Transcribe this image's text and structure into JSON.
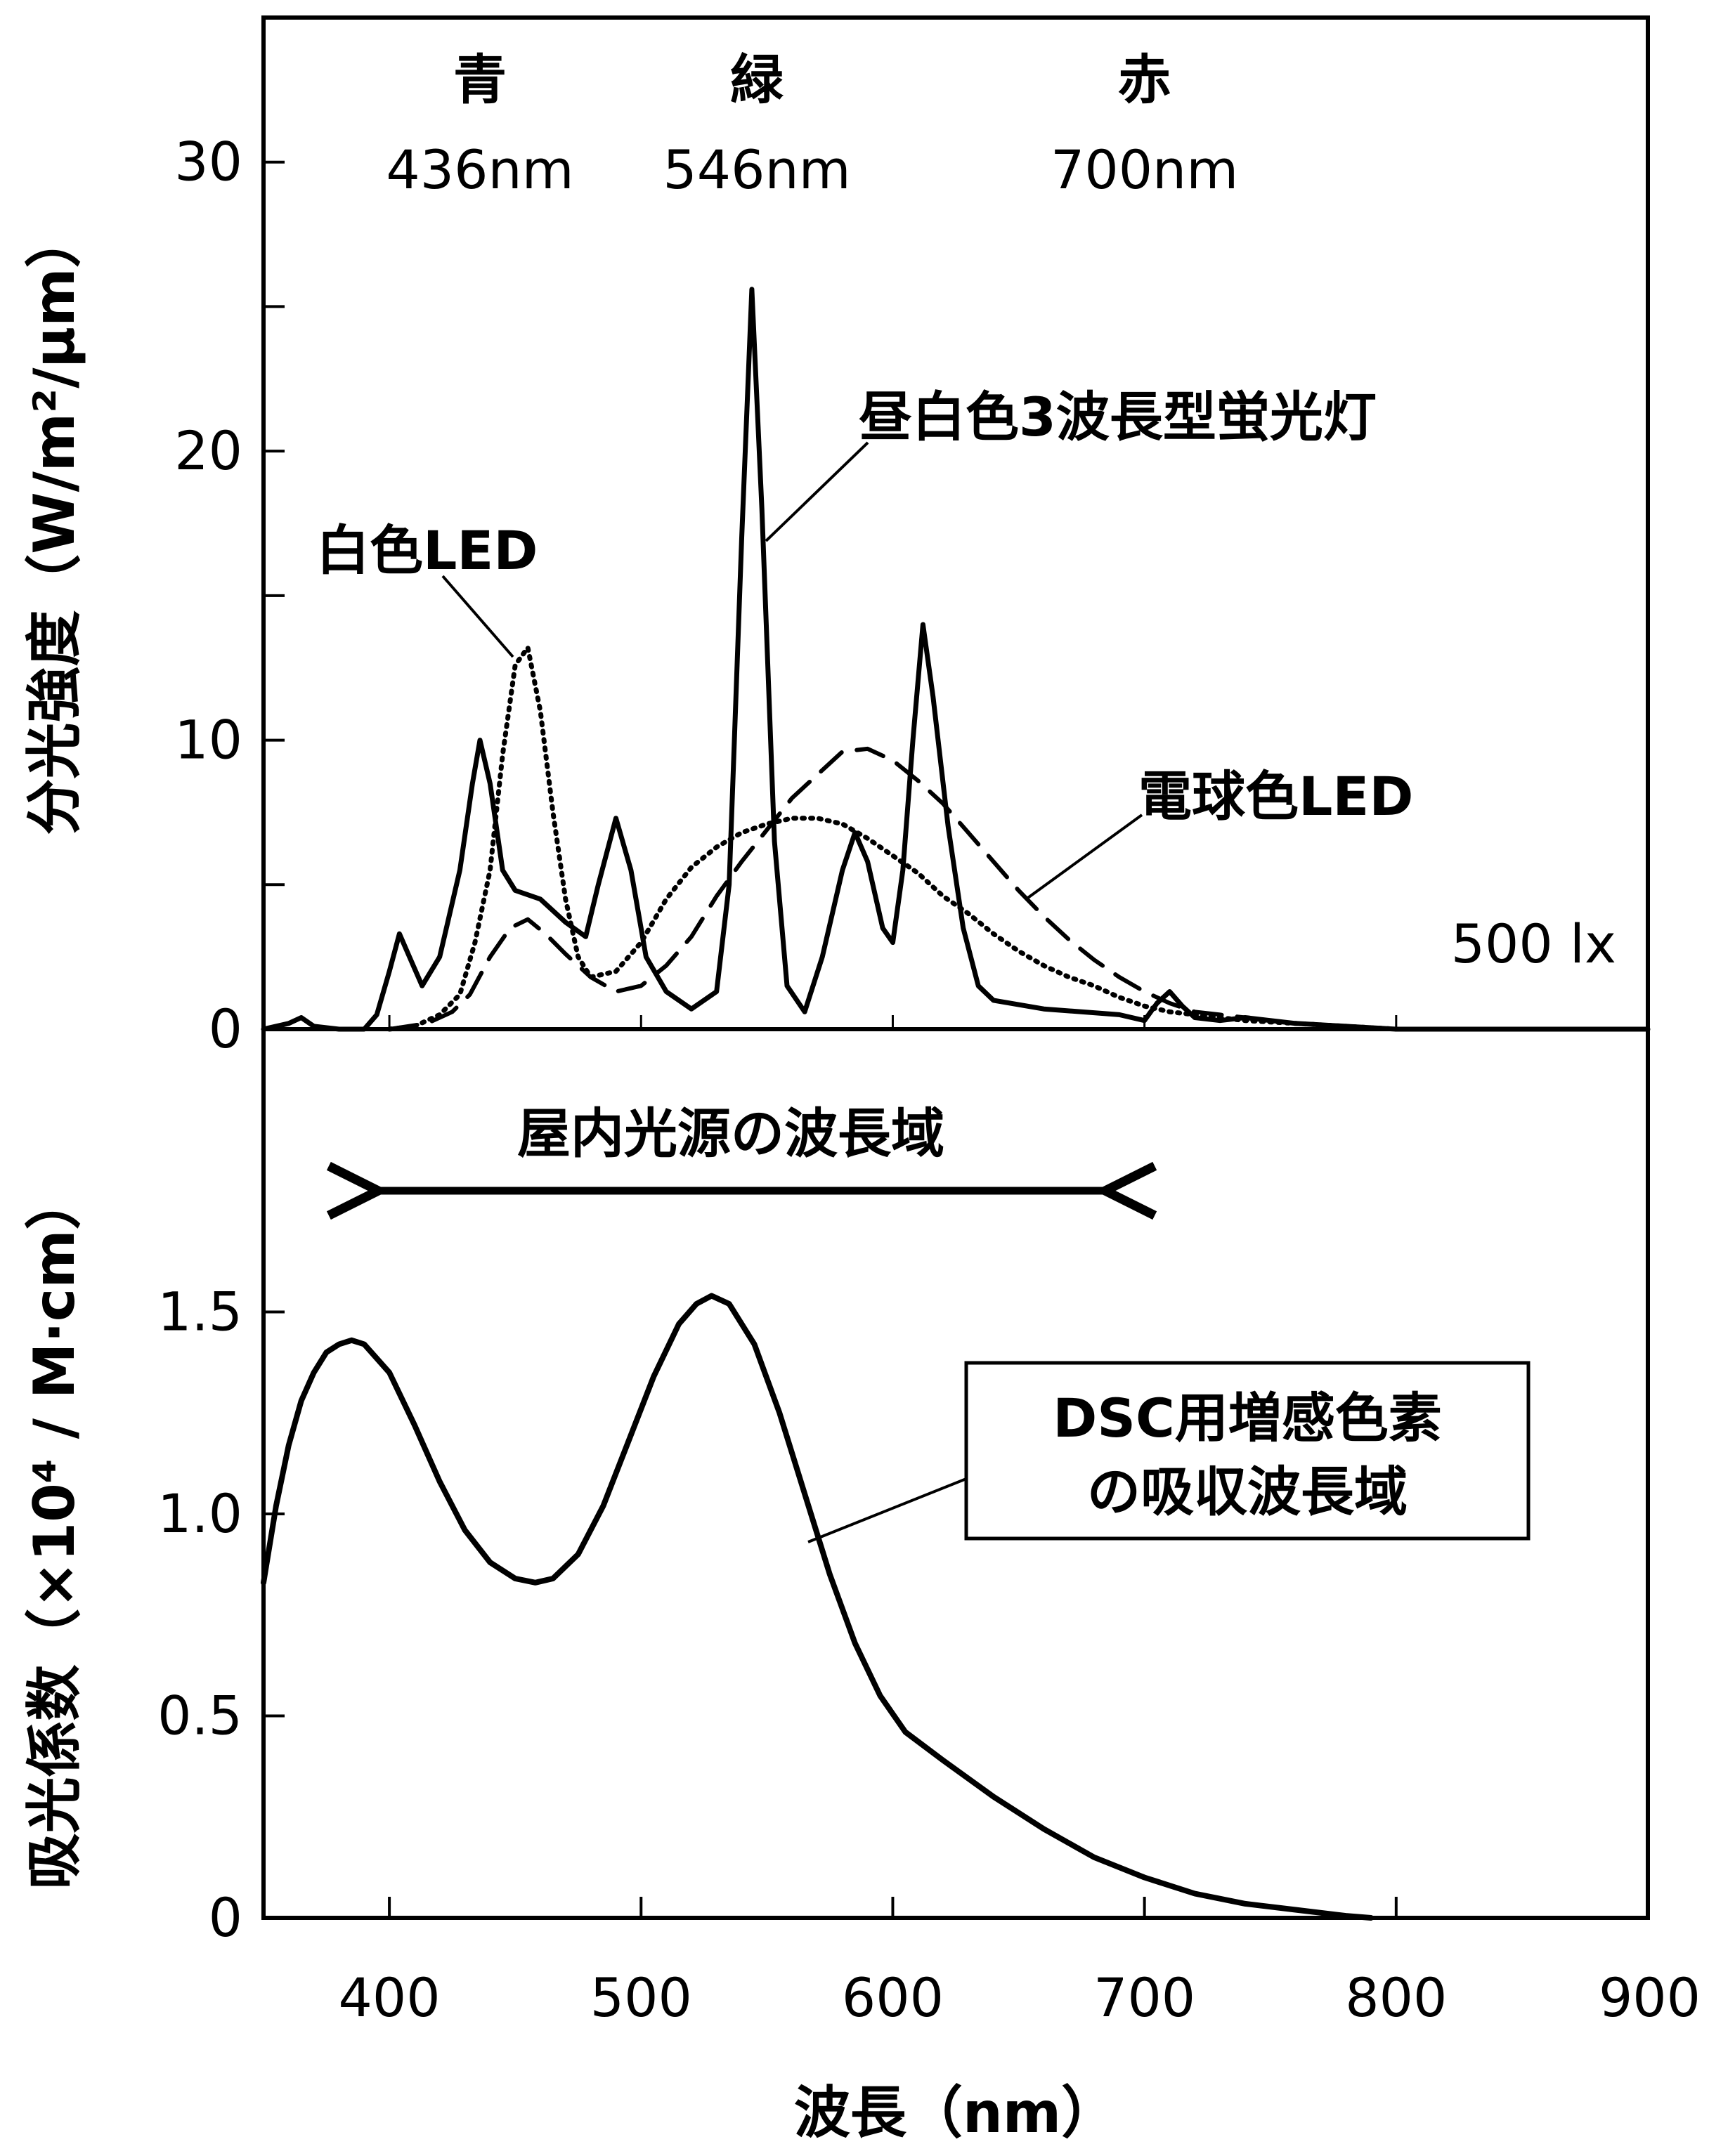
{
  "chart_data": [
    {
      "type": "line",
      "ylabel": "分光強度（W/m²/μm）",
      "ylim": [
        0,
        35
      ],
      "xlim": [
        350,
        900
      ],
      "yticks": [
        0,
        10,
        20,
        30
      ],
      "yticks_minor": [
        5,
        15,
        25
      ],
      "grid": false,
      "color_labels": [
        {
          "name": "青",
          "wavelength": "436nm",
          "x": 436
        },
        {
          "name": "緑",
          "wavelength": "546nm",
          "x": 546
        },
        {
          "name": "赤",
          "wavelength": "700nm",
          "x": 700
        }
      ],
      "note": "500 lx",
      "series": [
        {
          "name": "昼白色3波長型蛍光灯",
          "style": "solid",
          "points": [
            [
              350,
              0
            ],
            [
              360,
              0.2
            ],
            [
              365,
              0.4
            ],
            [
              370,
              0.1
            ],
            [
              380,
              0
            ],
            [
              390,
              0
            ],
            [
              395,
              0.5
            ],
            [
              400,
              2.0
            ],
            [
              404,
              3.3
            ],
            [
              408,
              2.5
            ],
            [
              413,
              1.5
            ],
            [
              420,
              2.5
            ],
            [
              428,
              5.5
            ],
            [
              433,
              8.5
            ],
            [
              436,
              10.0
            ],
            [
              440,
              8.5
            ],
            [
              445,
              5.5
            ],
            [
              450,
              4.8
            ],
            [
              460,
              4.5
            ],
            [
              470,
              3.7
            ],
            [
              478,
              3.2
            ],
            [
              483,
              5.0
            ],
            [
              490,
              7.3
            ],
            [
              496,
              5.5
            ],
            [
              502,
              2.5
            ],
            [
              510,
              1.3
            ],
            [
              520,
              0.7
            ],
            [
              530,
              1.3
            ],
            [
              535,
              5.0
            ],
            [
              540,
              17.0
            ],
            [
              544,
              25.6
            ],
            [
              548,
              18.0
            ],
            [
              553,
              6.5
            ],
            [
              558,
              1.5
            ],
            [
              565,
              0.6
            ],
            [
              572,
              2.5
            ],
            [
              580,
              5.5
            ],
            [
              585,
              6.8
            ],
            [
              590,
              5.8
            ],
            [
              596,
              3.5
            ],
            [
              600,
              3.0
            ],
            [
              604,
              5.5
            ],
            [
              608,
              10.0
            ],
            [
              612,
              14.0
            ],
            [
              616,
              11.5
            ],
            [
              622,
              7.0
            ],
            [
              628,
              3.5
            ],
            [
              634,
              1.5
            ],
            [
              640,
              1.0
            ],
            [
              660,
              0.7
            ],
            [
              690,
              0.5
            ],
            [
              700,
              0.3
            ],
            [
              705,
              0.9
            ],
            [
              710,
              1.3
            ],
            [
              715,
              0.8
            ],
            [
              720,
              0.4
            ],
            [
              730,
              0.3
            ],
            [
              740,
              0.4
            ],
            [
              750,
              0.3
            ],
            [
              760,
              0.2
            ],
            [
              780,
              0.1
            ],
            [
              800,
              0
            ],
            [
              900,
              0
            ]
          ]
        },
        {
          "name": "白色LED",
          "style": "dotted",
          "points": [
            [
              400,
              0
            ],
            [
              410,
              0.1
            ],
            [
              420,
              0.5
            ],
            [
              428,
              1.2
            ],
            [
              434,
              3.0
            ],
            [
              440,
              5.5
            ],
            [
              445,
              9.5
            ],
            [
              450,
              12.6
            ],
            [
              455,
              13.2
            ],
            [
              460,
              11.0
            ],
            [
              465,
              7.5
            ],
            [
              470,
              4.5
            ],
            [
              475,
              2.5
            ],
            [
              480,
              1.8
            ],
            [
              490,
              2.0
            ],
            [
              500,
              3.0
            ],
            [
              510,
              4.5
            ],
            [
              520,
              5.6
            ],
            [
              530,
              6.3
            ],
            [
              540,
              6.8
            ],
            [
              550,
              7.1
            ],
            [
              560,
              7.3
            ],
            [
              570,
              7.3
            ],
            [
              580,
              7.1
            ],
            [
              590,
              6.6
            ],
            [
              600,
              6.0
            ],
            [
              610,
              5.4
            ],
            [
              620,
              4.6
            ],
            [
              630,
              4.0
            ],
            [
              640,
              3.3
            ],
            [
              650,
              2.7
            ],
            [
              660,
              2.2
            ],
            [
              670,
              1.8
            ],
            [
              680,
              1.5
            ],
            [
              690,
              1.1
            ],
            [
              700,
              0.8
            ],
            [
              710,
              0.6
            ],
            [
              720,
              0.5
            ],
            [
              740,
              0.3
            ],
            [
              760,
              0.2
            ],
            [
              780,
              0.1
            ],
            [
              800,
              0
            ]
          ]
        },
        {
          "name": "電球色LED",
          "style": "dashed",
          "points": [
            [
              400,
              0
            ],
            [
              415,
              0.2
            ],
            [
              425,
              0.6
            ],
            [
              432,
              1.2
            ],
            [
              440,
              2.5
            ],
            [
              448,
              3.5
            ],
            [
              455,
              3.8
            ],
            [
              462,
              3.3
            ],
            [
              470,
              2.6
            ],
            [
              480,
              1.8
            ],
            [
              490,
              1.3
            ],
            [
              500,
              1.5
            ],
            [
              510,
              2.2
            ],
            [
              520,
              3.2
            ],
            [
              530,
              4.6
            ],
            [
              540,
              5.8
            ],
            [
              550,
              6.9
            ],
            [
              560,
              8.0
            ],
            [
              570,
              8.8
            ],
            [
              580,
              9.6
            ],
            [
              590,
              9.7
            ],
            [
              600,
              9.3
            ],
            [
              610,
              8.6
            ],
            [
              620,
              7.8
            ],
            [
              630,
              6.8
            ],
            [
              640,
              5.8
            ],
            [
              650,
              4.8
            ],
            [
              660,
              3.9
            ],
            [
              670,
              3.1
            ],
            [
              680,
              2.4
            ],
            [
              690,
              1.8
            ],
            [
              700,
              1.3
            ],
            [
              710,
              0.9
            ],
            [
              720,
              0.6
            ],
            [
              730,
              0.5
            ],
            [
              740,
              0.4
            ],
            [
              760,
              0.2
            ],
            [
              780,
              0.1
            ],
            [
              800,
              0
            ]
          ]
        }
      ]
    },
    {
      "type": "line",
      "ylabel": "吸光係数（×10⁴ / M·cm）",
      "xlabel": "波長（nm）",
      "xlim": [
        350,
        900
      ],
      "ylim": [
        0,
        2.2
      ],
      "xticks": [
        400,
        500,
        600,
        700,
        800,
        900
      ],
      "yticks": [
        0,
        0.5,
        1.0,
        1.5
      ],
      "yticklabels": [
        "0",
        "0.5",
        "1.0",
        "1.5"
      ],
      "grid": false,
      "range_arrow": {
        "label": "屋内光源の波長域",
        "from": 390,
        "to": 690
      },
      "series": [
        {
          "name": "DSC用増感色素の吸収波長域",
          "label_lines": [
            "DSC用増感色素",
            "の吸収波長域"
          ],
          "style": "solid",
          "points": [
            [
              350,
              0.83
            ],
            [
              355,
              1.02
            ],
            [
              360,
              1.17
            ],
            [
              365,
              1.28
            ],
            [
              370,
              1.35
            ],
            [
              375,
              1.4
            ],
            [
              380,
              1.42
            ],
            [
              385,
              1.43
            ],
            [
              390,
              1.42
            ],
            [
              400,
              1.35
            ],
            [
              410,
              1.22
            ],
            [
              420,
              1.08
            ],
            [
              430,
              0.96
            ],
            [
              440,
              0.88
            ],
            [
              450,
              0.84
            ],
            [
              458,
              0.83
            ],
            [
              465,
              0.84
            ],
            [
              475,
              0.9
            ],
            [
              485,
              1.02
            ],
            [
              495,
              1.18
            ],
            [
              505,
              1.34
            ],
            [
              515,
              1.47
            ],
            [
              522,
              1.52
            ],
            [
              528,
              1.54
            ],
            [
              535,
              1.52
            ],
            [
              545,
              1.42
            ],
            [
              555,
              1.25
            ],
            [
              565,
              1.05
            ],
            [
              575,
              0.85
            ],
            [
              585,
              0.68
            ],
            [
              595,
              0.55
            ],
            [
              605,
              0.46
            ],
            [
              620,
              0.39
            ],
            [
              640,
              0.3
            ],
            [
              660,
              0.22
            ],
            [
              680,
              0.15
            ],
            [
              700,
              0.1
            ],
            [
              720,
              0.06
            ],
            [
              740,
              0.035
            ],
            [
              760,
              0.02
            ],
            [
              780,
              0.005
            ],
            [
              790,
              0
            ]
          ]
        }
      ]
    }
  ]
}
